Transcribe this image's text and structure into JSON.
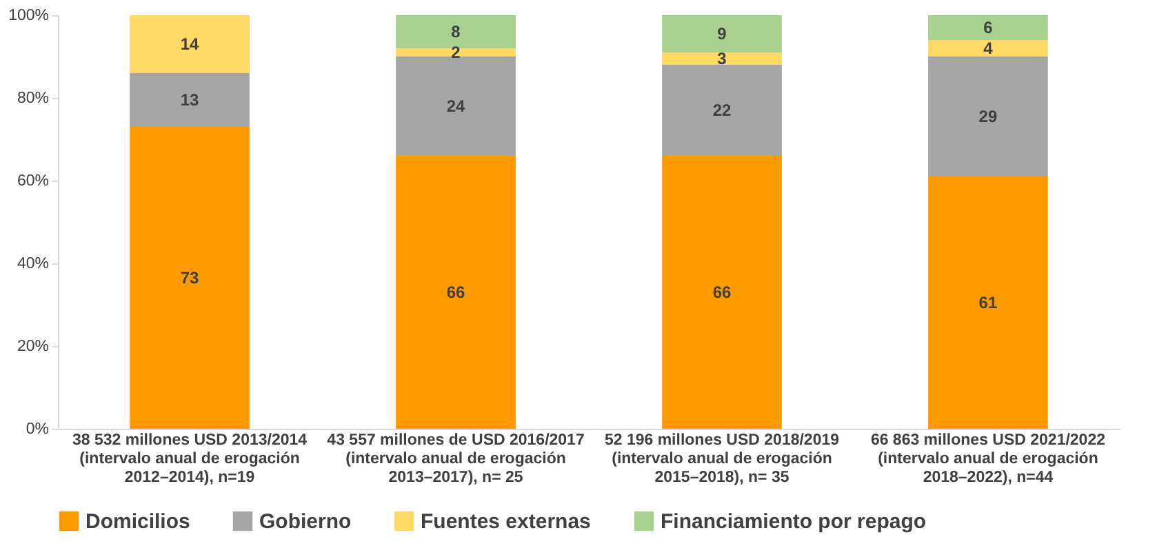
{
  "chart_data": {
    "type": "bar",
    "stacked": true,
    "categories": [
      "38 532 millones USD 2013/2014 (intervalo anual de erogación 2012–2014), n=19",
      "43 557 millones de USD 2016/2017 (intervalo anual de erogación 2013–2017), n= 25",
      "52 196 millones USD 2018/2019 (intervalo anual de erogación 2015–2018), n= 35",
      "66 863 millones USD 2021/2022 (intervalo anual de erogación 2018–2022), n=44"
    ],
    "series": [
      {
        "name": "Domicilios",
        "color": "#ff9900",
        "values": [
          73,
          66,
          66,
          61
        ]
      },
      {
        "name": "Gobierno",
        "color": "#a5a5a5",
        "values": [
          13,
          24,
          22,
          29
        ]
      },
      {
        "name": "Fuentes externas",
        "color": "#ffd966",
        "values": [
          14,
          2,
          3,
          4
        ]
      },
      {
        "name": "Financiamiento por repago",
        "color": "#a9d18e",
        "values": [
          null,
          8,
          9,
          6
        ]
      }
    ],
    "ylim": [
      0,
      100
    ],
    "yticks": [
      {
        "value": 0,
        "label": "0%"
      },
      {
        "value": 20,
        "label": "20%"
      },
      {
        "value": 40,
        "label": "40%"
      },
      {
        "value": 60,
        "label": "60%"
      },
      {
        "value": 80,
        "label": "80%"
      },
      {
        "value": 100,
        "label": "100%"
      }
    ],
    "data_labels": true,
    "legend": "bottom",
    "grid": false
  }
}
